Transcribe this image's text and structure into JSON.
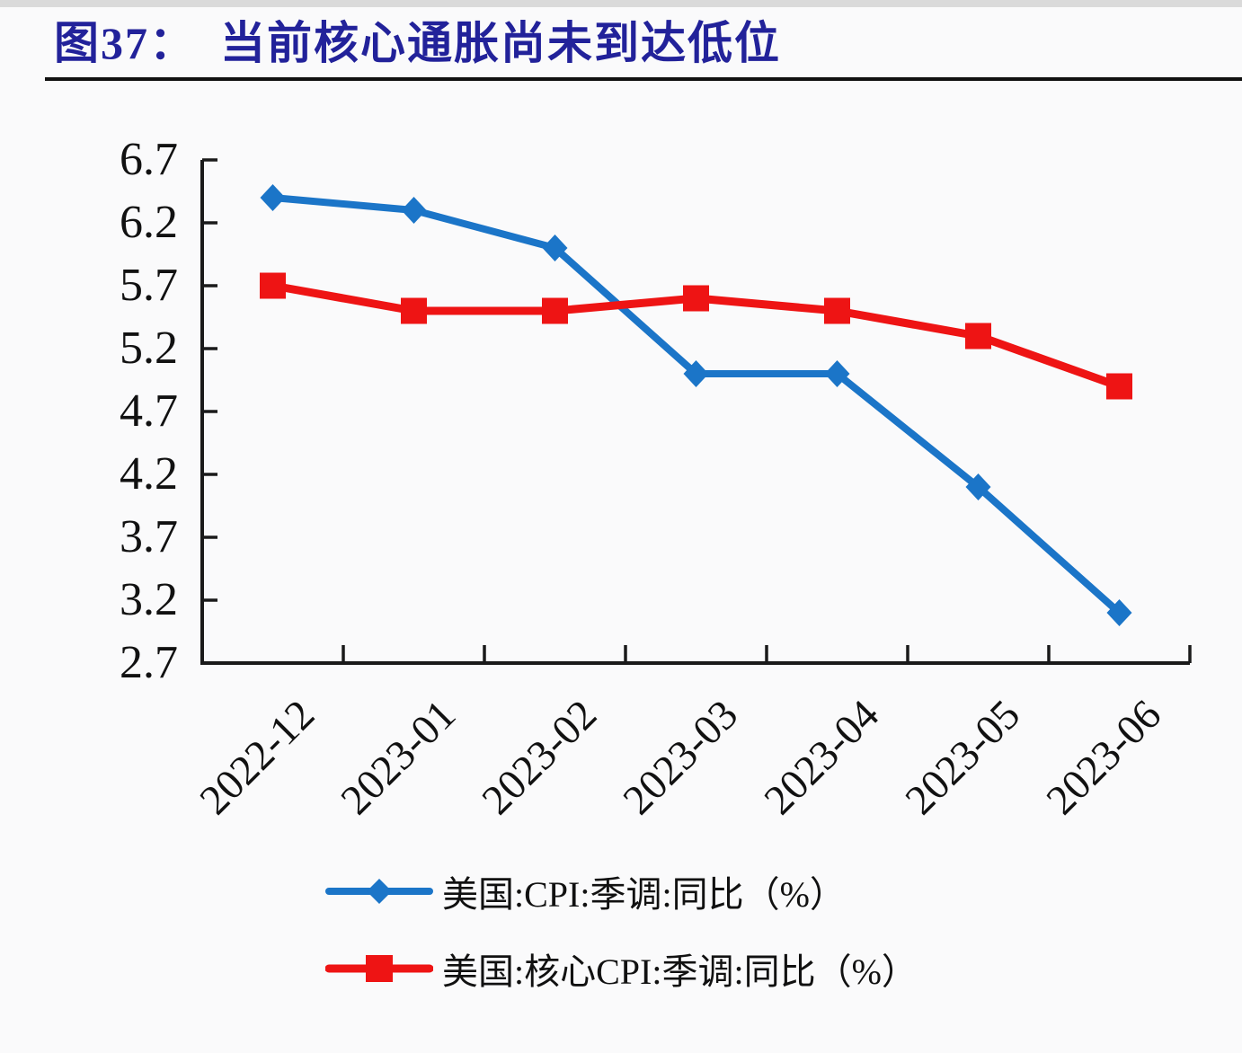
{
  "page": {
    "background_color": "#FAFAFB",
    "top_strip_color": "#DADADA",
    "rule_color": "#111111"
  },
  "header": {
    "title": "图37：　当前核心通胀尚未到达低位",
    "title_color": "#22229A"
  },
  "chart_data": {
    "type": "line",
    "title": "当前核心通胀尚未到达低位",
    "categories": [
      "2022-12",
      "2023-01",
      "2023-02",
      "2023-03",
      "2023-04",
      "2023-05",
      "2023-06"
    ],
    "series": [
      {
        "name": "美国:CPI:季调:同比（%）",
        "color": "#1B75C8",
        "marker": "diamond",
        "values": [
          6.4,
          6.3,
          6.0,
          5.0,
          5.0,
          4.1,
          3.1
        ]
      },
      {
        "name": "美国:核心CPI:季调:同比（%）",
        "color": "#EE1414",
        "marker": "square",
        "values": [
          5.7,
          5.5,
          5.5,
          5.6,
          5.5,
          5.3,
          4.9
        ]
      }
    ],
    "xlabel": "",
    "ylabel": "",
    "ylim": [
      2.7,
      6.7
    ],
    "ytick_step": 0.5,
    "yticks": [
      "6.7",
      "6.2",
      "5.7",
      "5.2",
      "4.7",
      "4.2",
      "3.7",
      "3.2",
      "2.7"
    ],
    "grid": false,
    "axis_color": "#1A1A1A",
    "legend_position": "bottom"
  }
}
